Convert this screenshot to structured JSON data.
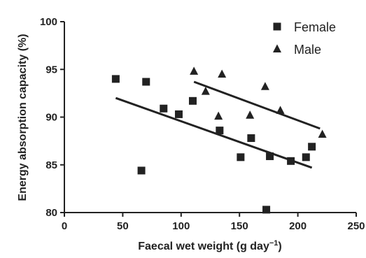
{
  "chart_data": {
    "type": "scatter",
    "xlabel": "Faecal wet weight (g day",
    "xlabel_sup": "−1",
    "xlabel_close": ")",
    "ylabel": "Energy absorption capacity (%)",
    "xlim": [
      0,
      250
    ],
    "ylim": [
      80,
      100
    ],
    "xticks": [
      0,
      50,
      100,
      150,
      200,
      250
    ],
    "yticks": [
      80,
      85,
      90,
      95,
      100
    ],
    "grid": false,
    "legend_position": "top-right",
    "series": [
      {
        "name": "Female",
        "marker": "square",
        "color": "#222222",
        "points": [
          [
            44,
            94.0
          ],
          [
            66,
            84.4
          ],
          [
            70,
            93.7
          ],
          [
            85,
            90.9
          ],
          [
            98,
            90.3
          ],
          [
            110,
            91.7
          ],
          [
            133,
            88.6
          ],
          [
            151,
            85.8
          ],
          [
            160,
            87.8
          ],
          [
            173,
            80.3
          ],
          [
            176,
            85.9
          ],
          [
            194,
            85.4
          ],
          [
            207,
            85.8
          ],
          [
            212,
            86.9
          ]
        ],
        "trend": [
          [
            44,
            92.0
          ],
          [
            212,
            84.7
          ]
        ]
      },
      {
        "name": "Male",
        "marker": "triangle",
        "color": "#222222",
        "points": [
          [
            111,
            94.8
          ],
          [
            121,
            92.7
          ],
          [
            132,
            90.1
          ],
          [
            135,
            94.5
          ],
          [
            159,
            90.2
          ],
          [
            172,
            93.2
          ],
          [
            185,
            90.7
          ],
          [
            221,
            88.2
          ]
        ],
        "trend": [
          [
            111,
            93.7
          ],
          [
            219,
            88.8
          ]
        ]
      }
    ]
  }
}
